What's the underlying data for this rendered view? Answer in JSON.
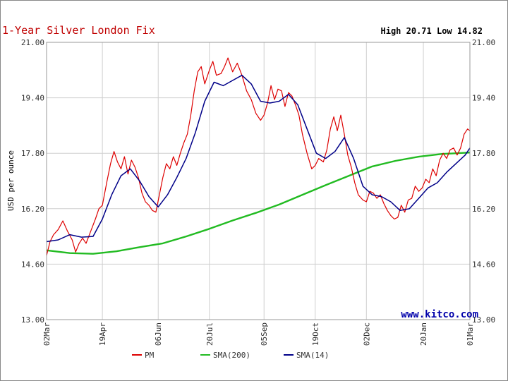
{
  "header": {
    "title": "1-Year Silver London Fix",
    "high_low": "High 20.71 Low 14.82"
  },
  "brand": "www.kitco.com",
  "colors": {
    "pm": "#dd0000",
    "sma200": "#22bb22",
    "sma14": "#000088",
    "grid": "#cfcfcf",
    "frame": "#999999"
  },
  "chart_data": {
    "type": "line",
    "title": "1-Year Silver London Fix",
    "xlabel": "",
    "ylabel": "USD per ounce",
    "ylim": [
      13.0,
      21.0
    ],
    "y_ticks": [
      "21.00",
      "19.40",
      "17.80",
      "16.20",
      "14.60",
      "13.00"
    ],
    "x_tick_labels": [
      "02Mar",
      "19Apr",
      "06Jun",
      "20Jul",
      "05Sep",
      "19Oct",
      "02Dec",
      "20Jan",
      "01Mar"
    ],
    "x_tick_days": [
      0,
      48,
      96,
      140,
      187,
      231,
      275,
      324,
      364
    ],
    "grid": true,
    "legend_position": "bottom",
    "annotations": [
      "High 20.71 Low 14.82"
    ],
    "series": [
      {
        "name": "PM",
        "color": "#dd0000",
        "x": [
          0,
          3,
          6,
          10,
          14,
          18,
          22,
          25,
          28,
          31,
          34,
          38,
          42,
          45,
          48,
          52,
          55,
          58,
          61,
          64,
          67,
          70,
          73,
          76,
          79,
          82,
          85,
          88,
          91,
          94,
          97,
          100,
          103,
          106,
          109,
          112,
          115,
          118,
          121,
          124,
          127,
          130,
          133,
          136,
          140,
          143,
          146,
          150,
          153,
          156,
          160,
          164,
          168,
          172,
          176,
          180,
          184,
          187,
          190,
          193,
          196,
          199,
          202,
          205,
          208,
          211,
          214,
          217,
          220,
          224,
          228,
          231,
          234,
          238,
          241,
          244,
          247,
          250,
          253,
          256,
          259,
          262,
          265,
          268,
          272,
          275,
          278,
          281,
          284,
          287,
          290,
          293,
          296,
          299,
          302,
          305,
          308,
          311,
          314,
          317,
          320,
          323,
          326,
          329,
          332,
          335,
          338,
          341,
          344,
          347,
          350,
          353,
          356,
          359,
          362,
          364
        ],
        "y": [
          14.85,
          15.25,
          15.45,
          15.6,
          15.85,
          15.55,
          15.3,
          14.95,
          15.2,
          15.35,
          15.2,
          15.55,
          15.9,
          16.2,
          16.3,
          17.0,
          17.5,
          17.85,
          17.55,
          17.35,
          17.7,
          17.2,
          17.6,
          17.4,
          17.1,
          16.65,
          16.4,
          16.3,
          16.15,
          16.1,
          16.6,
          17.1,
          17.5,
          17.35,
          17.7,
          17.45,
          17.8,
          18.1,
          18.35,
          18.9,
          19.6,
          20.15,
          20.3,
          19.8,
          20.2,
          20.45,
          20.05,
          20.1,
          20.3,
          20.55,
          20.15,
          20.4,
          20.05,
          19.6,
          19.35,
          18.95,
          18.75,
          18.9,
          19.25,
          19.75,
          19.35,
          19.65,
          19.6,
          19.15,
          19.55,
          19.45,
          19.2,
          18.9,
          18.35,
          17.8,
          17.35,
          17.45,
          17.65,
          17.55,
          17.9,
          18.5,
          18.85,
          18.45,
          18.9,
          18.35,
          17.75,
          17.4,
          16.95,
          16.6,
          16.45,
          16.4,
          16.7,
          16.65,
          16.5,
          16.6,
          16.35,
          16.15,
          16.0,
          15.9,
          15.95,
          16.3,
          16.1,
          16.45,
          16.5,
          16.85,
          16.7,
          16.8,
          17.05,
          16.95,
          17.35,
          17.15,
          17.6,
          17.8,
          17.65,
          17.9,
          17.95,
          17.75,
          17.95,
          18.35,
          18.5,
          18.45
        ]
      },
      {
        "name": "SMA(200)",
        "color": "#22bb22",
        "x": [
          0,
          20,
          40,
          60,
          80,
          100,
          120,
          140,
          160,
          180,
          200,
          220,
          240,
          260,
          280,
          300,
          320,
          340,
          364
        ],
        "y": [
          15.0,
          14.92,
          14.9,
          14.97,
          15.09,
          15.2,
          15.4,
          15.62,
          15.86,
          16.08,
          16.32,
          16.6,
          16.88,
          17.15,
          17.42,
          17.58,
          17.7,
          17.78,
          17.82
        ]
      },
      {
        "name": "SMA(14)",
        "color": "#000088",
        "x": [
          0,
          10,
          20,
          30,
          40,
          48,
          56,
          64,
          72,
          80,
          88,
          96,
          104,
          112,
          120,
          128,
          136,
          144,
          152,
          160,
          168,
          176,
          184,
          192,
          200,
          208,
          216,
          224,
          232,
          240,
          248,
          256,
          264,
          272,
          280,
          288,
          296,
          304,
          312,
          320,
          328,
          336,
          344,
          352,
          360,
          364
        ],
        "y": [
          15.25,
          15.3,
          15.45,
          15.38,
          15.4,
          15.9,
          16.6,
          17.15,
          17.35,
          17.0,
          16.55,
          16.25,
          16.6,
          17.1,
          17.65,
          18.4,
          19.3,
          19.85,
          19.75,
          19.9,
          20.05,
          19.8,
          19.3,
          19.25,
          19.3,
          19.5,
          19.2,
          18.5,
          17.8,
          17.65,
          17.85,
          18.25,
          17.65,
          16.85,
          16.6,
          16.55,
          16.4,
          16.15,
          16.2,
          16.5,
          16.8,
          16.95,
          17.25,
          17.5,
          17.75,
          17.95
        ]
      }
    ]
  }
}
